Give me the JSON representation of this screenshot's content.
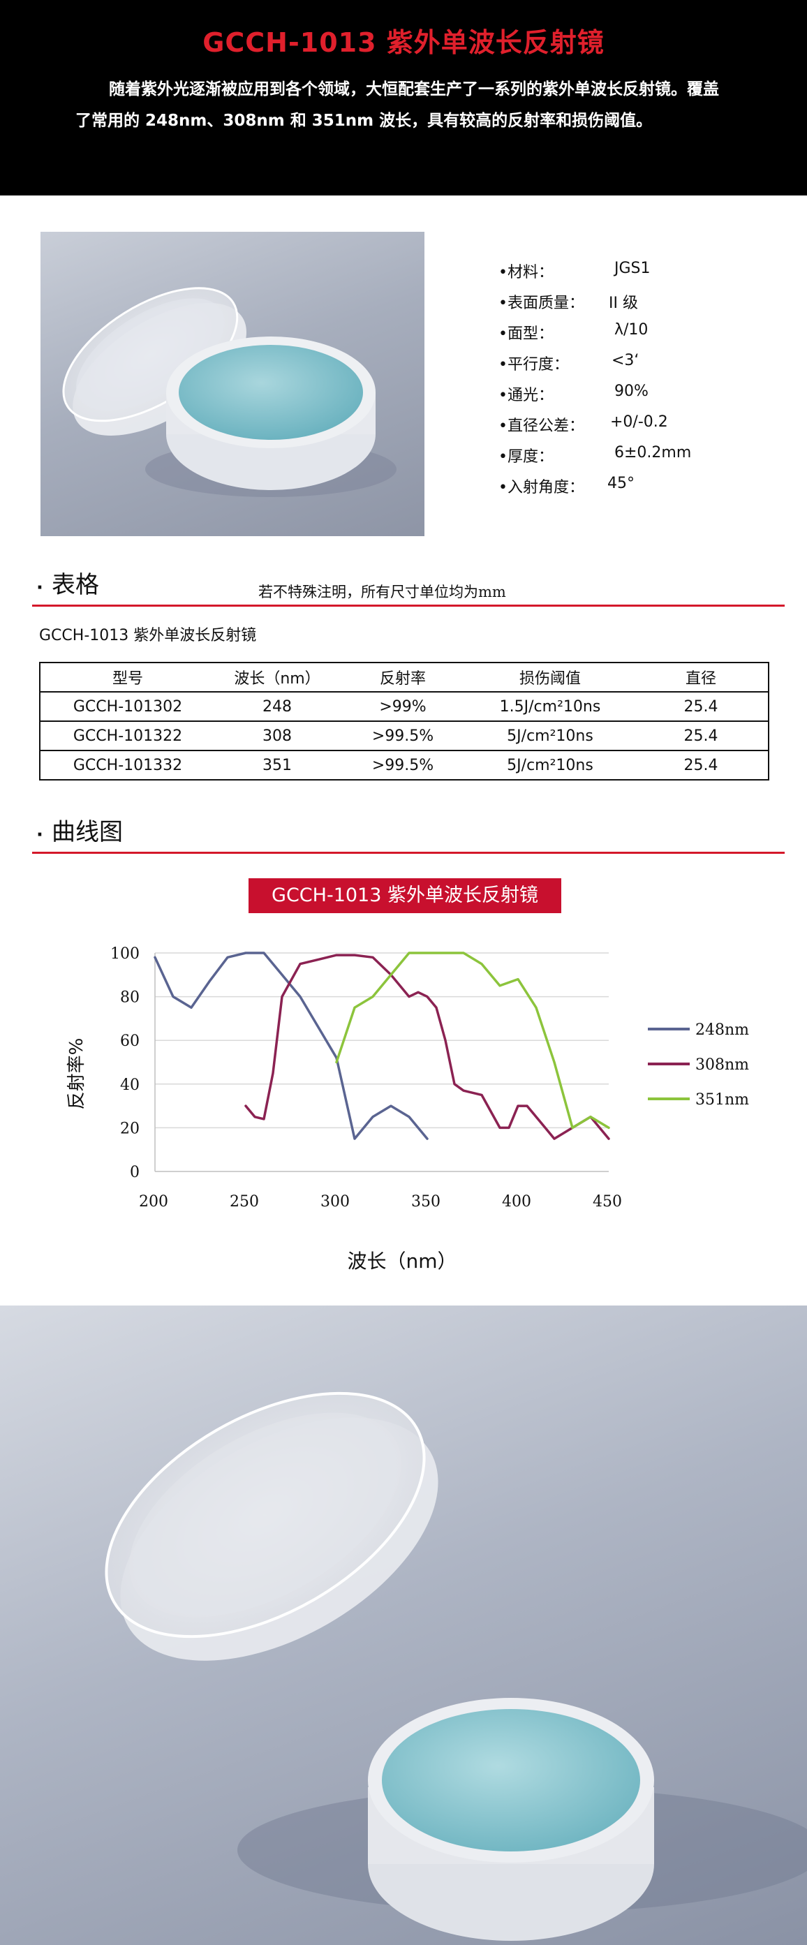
{
  "header": {
    "title": "GCCH-1013 紫外单波长反射镜",
    "intro": "随着紫外光逐渐被应用到各个领域，大恒配套生产了一系列的紫外单波长反射镜。覆盖了常用的 248nm、308nm 和 351nm 波长，具有较高的反射率和损伤阈值。"
  },
  "specs": [
    {
      "key": "•材料：",
      "value": "JGS1"
    },
    {
      "key": "•表面质量：",
      "value": "II 级"
    },
    {
      "key": "•面型：",
      "value": "λ/10"
    },
    {
      "key": "•平行度：",
      "value": "<3‘"
    },
    {
      "key": "•通光：",
      "value": "90%"
    },
    {
      "key": "•直径公差：",
      "value": "+0/-0.2"
    },
    {
      "key": "•厚度：",
      "value": "6±0.2mm"
    },
    {
      "key": "•入射角度：",
      "value": "45°"
    }
  ],
  "table_section": {
    "heading": "表格",
    "note": "若不特殊注明，所有尺寸单位均为mm",
    "caption": "GCCH-1013 紫外单波长反射镜",
    "headers": [
      "型号",
      "波长（nm）",
      "反射率",
      "损伤阈值",
      "直径"
    ],
    "rows": [
      [
        "GCCH-101302",
        "248",
        ">99%",
        "1.5J/cm²10ns",
        "25.4"
      ],
      [
        "GCCH-101322",
        "308",
        ">99.5%",
        "5J/cm²10ns",
        "25.4"
      ],
      [
        "GCCH-101332",
        "351",
        ">99.5%",
        "5J/cm²10ns",
        "25.4"
      ]
    ]
  },
  "chart_section": {
    "heading": "曲线图"
  },
  "colors": {
    "accent_red": "#d4182a",
    "title_box": "#c8102e",
    "series_248": "#5a6491",
    "series_308": "#8b2252",
    "series_351": "#8cc43c"
  },
  "chart_data": {
    "type": "line",
    "title": "GCCH-1013 紫外单波长反射镜",
    "xlabel": "波长（nm）",
    "ylabel": "反射率%",
    "xlim": [
      200,
      450
    ],
    "ylim": [
      0,
      100
    ],
    "xticks": [
      "200",
      "250",
      "300",
      "350",
      "400",
      "450"
    ],
    "yticks": [
      "0",
      "20",
      "40",
      "60",
      "80",
      "100"
    ],
    "grid": true,
    "legend": "right",
    "series": [
      {
        "name": "248nm",
        "color": "#5a6491",
        "points": [
          [
            200,
            98
          ],
          [
            210,
            80
          ],
          [
            220,
            75
          ],
          [
            230,
            87
          ],
          [
            240,
            98
          ],
          [
            250,
            100
          ],
          [
            260,
            100
          ],
          [
            270,
            90
          ],
          [
            280,
            80
          ],
          [
            290,
            66
          ],
          [
            300,
            52
          ],
          [
            310,
            15
          ],
          [
            320,
            25
          ],
          [
            330,
            30
          ],
          [
            340,
            25
          ],
          [
            350,
            15
          ]
        ]
      },
      {
        "name": "308nm",
        "color": "#8b2252",
        "points": [
          [
            250,
            30
          ],
          [
            255,
            25
          ],
          [
            260,
            24
          ],
          [
            265,
            45
          ],
          [
            270,
            80
          ],
          [
            280,
            95
          ],
          [
            290,
            97
          ],
          [
            300,
            99
          ],
          [
            310,
            99
          ],
          [
            320,
            98
          ],
          [
            330,
            90
          ],
          [
            340,
            80
          ],
          [
            345,
            82
          ],
          [
            350,
            80
          ],
          [
            355,
            75
          ],
          [
            360,
            60
          ],
          [
            365,
            40
          ],
          [
            370,
            37
          ],
          [
            380,
            35
          ],
          [
            390,
            20
          ],
          [
            395,
            20
          ],
          [
            400,
            30
          ],
          [
            405,
            30
          ],
          [
            410,
            25
          ],
          [
            415,
            20
          ],
          [
            420,
            15
          ],
          [
            430,
            20
          ],
          [
            440,
            25
          ],
          [
            450,
            15
          ]
        ]
      },
      {
        "name": "351nm",
        "color": "#8cc43c",
        "points": [
          [
            300,
            50
          ],
          [
            310,
            75
          ],
          [
            320,
            80
          ],
          [
            330,
            90
          ],
          [
            340,
            100
          ],
          [
            350,
            100
          ],
          [
            360,
            100
          ],
          [
            370,
            100
          ],
          [
            380,
            95
          ],
          [
            390,
            85
          ],
          [
            400,
            88
          ],
          [
            410,
            75
          ],
          [
            420,
            50
          ],
          [
            430,
            20
          ],
          [
            440,
            25
          ],
          [
            450,
            20
          ]
        ]
      }
    ]
  }
}
